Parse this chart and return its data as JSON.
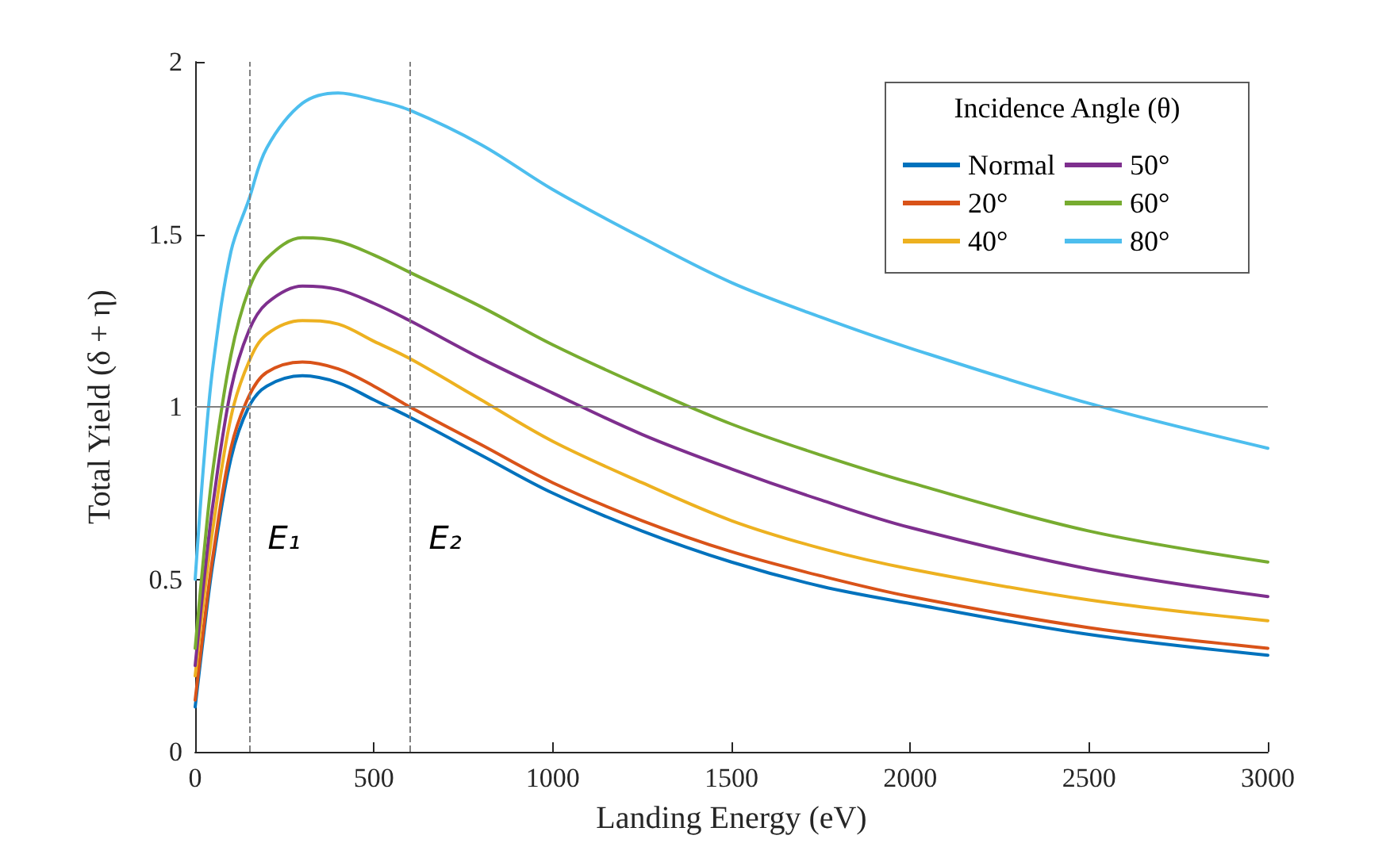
{
  "chart_data": {
    "type": "line",
    "xlabel": "Landing Energy (eV)",
    "ylabel": "Total Yield (δ + η)",
    "legend_title": "Incidence Angle (θ)",
    "legend": "top right",
    "grid": false,
    "line_style": "solid",
    "marker": "none",
    "x": [
      0,
      25,
      50,
      100,
      150,
      200,
      300,
      400,
      500,
      600,
      800,
      1000,
      1250,
      1500,
      1750,
      2000,
      2500,
      3000
    ],
    "series": [
      {
        "name": "Normal",
        "color": "#0072bd",
        "values": [
          0.13,
          0.35,
          0.55,
          0.85,
          1.0,
          1.06,
          1.09,
          1.07,
          1.02,
          0.97,
          0.86,
          0.75,
          0.64,
          0.55,
          0.48,
          0.43,
          0.34,
          0.28
        ]
      },
      {
        "name": "20°",
        "color": "#d95319",
        "values": [
          0.15,
          0.37,
          0.57,
          0.88,
          1.03,
          1.1,
          1.13,
          1.11,
          1.06,
          1.0,
          0.89,
          0.78,
          0.67,
          0.58,
          0.51,
          0.45,
          0.36,
          0.3
        ]
      },
      {
        "name": "40°",
        "color": "#edb120",
        "values": [
          0.22,
          0.45,
          0.65,
          0.97,
          1.13,
          1.21,
          1.25,
          1.24,
          1.19,
          1.14,
          1.02,
          0.9,
          0.78,
          0.67,
          0.59,
          0.53,
          0.44,
          0.38
        ]
      },
      {
        "name": "50°",
        "color": "#7e2f8e",
        "values": [
          0.25,
          0.5,
          0.72,
          1.05,
          1.22,
          1.3,
          1.35,
          1.34,
          1.3,
          1.25,
          1.14,
          1.04,
          0.92,
          0.82,
          0.73,
          0.65,
          0.53,
          0.45
        ]
      },
      {
        "name": "60°",
        "color": "#77ac30",
        "values": [
          0.3,
          0.58,
          0.82,
          1.15,
          1.34,
          1.43,
          1.49,
          1.48,
          1.44,
          1.39,
          1.29,
          1.18,
          1.06,
          0.95,
          0.86,
          0.78,
          0.64,
          0.55
        ]
      },
      {
        "name": "80°",
        "color": "#4dbeee",
        "values": [
          0.5,
          0.85,
          1.12,
          1.45,
          1.6,
          1.75,
          1.88,
          1.91,
          1.89,
          1.86,
          1.76,
          1.63,
          1.49,
          1.36,
          1.26,
          1.17,
          1.01,
          0.88
        ]
      }
    ],
    "xlim": [
      0,
      3000
    ],
    "xticks": [
      0,
      500,
      1000,
      1500,
      2000,
      2500,
      3000
    ],
    "ylim": [
      0,
      2
    ],
    "yticks": [
      0,
      0.5,
      1,
      1.5,
      2
    ],
    "ref_lines": [
      {
        "axis": "x",
        "value": 150,
        "label": "E₁",
        "color": "#808080",
        "line_style": "dashed"
      },
      {
        "axis": "x",
        "value": 600,
        "label": "E₂",
        "color": "#808080",
        "line_style": "dashed"
      },
      {
        "axis": "y",
        "value": 1,
        "color": "#808080",
        "line_style": "solid"
      }
    ]
  }
}
